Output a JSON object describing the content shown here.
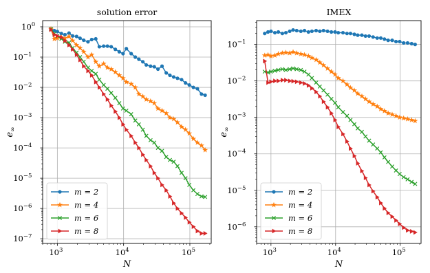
{
  "chart_data": [
    {
      "type": "line",
      "title": "solution error",
      "xlabel": "N",
      "ylabel": "e∞",
      "xscale": "log",
      "yscale": "log",
      "xlim": [
        600,
        210000
      ],
      "ylim": [
        7e-08,
        1.6
      ],
      "grid": true,
      "legend_position": "lower-left",
      "x_ticks": [
        1000,
        10000,
        100000
      ],
      "x_tick_labels": [
        "10³",
        "10⁴",
        "10⁵"
      ],
      "y_ticks": [
        1e-07,
        1e-06,
        1e-05,
        0.0001,
        0.001,
        0.01,
        0.1,
        1
      ],
      "y_tick_labels": [
        "10⁻⁷",
        "10⁻⁶",
        "10⁻⁵",
        "10⁻⁴",
        "10⁻³",
        "10⁻²",
        "10⁻¹",
        "10⁰"
      ],
      "series": [
        {
          "name": "m = 2",
          "color": "#1f77b4",
          "marker": "circle",
          "x": [
            800,
            900,
            1000,
            1150,
            1300,
            1500,
            1700,
            1950,
            2200,
            2500,
            2900,
            3300,
            3800,
            4300,
            5000,
            5700,
            6500,
            7500,
            8600,
            9800,
            11000,
            13000,
            15000,
            17000,
            19500,
            22000,
            25500,
            29000,
            33000,
            38000,
            44000,
            50000,
            57000,
            65000,
            75000,
            86000,
            98000,
            113000,
            130000,
            150000,
            170000
          ],
          "y": [
            0.85,
            0.75,
            0.7,
            0.6,
            0.55,
            0.62,
            0.5,
            0.48,
            0.42,
            0.36,
            0.32,
            0.38,
            0.4,
            0.22,
            0.23,
            0.23,
            0.22,
            0.18,
            0.15,
            0.13,
            0.19,
            0.13,
            0.1,
            0.085,
            0.07,
            0.055,
            0.05,
            0.048,
            0.04,
            0.05,
            0.03,
            0.025,
            0.022,
            0.02,
            0.018,
            0.014,
            0.012,
            0.01,
            0.009,
            0.006,
            0.0055
          ]
        },
        {
          "name": "m = 4",
          "color": "#ff7f0e",
          "marker": "star",
          "x": [
            800,
            900,
            1000,
            1150,
            1300,
            1500,
            1700,
            1950,
            2200,
            2500,
            2900,
            3300,
            3800,
            4300,
            5000,
            5700,
            6500,
            7500,
            8600,
            9800,
            11000,
            13000,
            15000,
            17000,
            19500,
            22000,
            25500,
            29000,
            33000,
            38000,
            44000,
            50000,
            57000,
            65000,
            75000,
            86000,
            98000,
            113000,
            130000,
            150000,
            170000
          ],
          "y": [
            0.85,
            0.4,
            0.42,
            0.45,
            0.42,
            0.48,
            0.35,
            0.25,
            0.2,
            0.15,
            0.1,
            0.12,
            0.07,
            0.05,
            0.06,
            0.045,
            0.04,
            0.032,
            0.025,
            0.02,
            0.015,
            0.013,
            0.01,
            0.006,
            0.005,
            0.004,
            0.0035,
            0.003,
            0.002,
            0.0017,
            0.0014,
            0.001,
            0.0009,
            0.0007,
            0.0005,
            0.0004,
            0.0003,
            0.0002,
            0.00015,
            0.00012,
            8.5e-05
          ]
        },
        {
          "name": "m = 6",
          "color": "#2ca02c",
          "marker": "x",
          "x": [
            800,
            900,
            1000,
            1150,
            1300,
            1500,
            1700,
            1950,
            2200,
            2500,
            2900,
            3300,
            3800,
            4300,
            5000,
            5700,
            6500,
            7500,
            8600,
            9800,
            11000,
            13000,
            15000,
            17000,
            19500,
            22000,
            25500,
            29000,
            33000,
            38000,
            44000,
            50000,
            57000,
            65000,
            75000,
            86000,
            98000,
            113000,
            130000,
            150000,
            170000
          ],
          "y": [
            0.85,
            0.6,
            0.5,
            0.4,
            0.32,
            0.3,
            0.2,
            0.14,
            0.1,
            0.07,
            0.045,
            0.035,
            0.028,
            0.018,
            0.012,
            0.009,
            0.0065,
            0.0045,
            0.003,
            0.002,
            0.0017,
            0.0013,
            0.0008,
            0.0006,
            0.0004,
            0.00025,
            0.00018,
            0.00015,
            0.0001,
            8e-05,
            5e-05,
            4e-05,
            3.5e-05,
            2.5e-05,
            1.5e-05,
            1e-05,
            6e-06,
            4e-06,
            3e-06,
            2.5e-06,
            2.4e-06
          ]
        },
        {
          "name": "m = 8",
          "color": "#d62728",
          "marker": "triangle-right",
          "x": [
            800,
            900,
            1000,
            1150,
            1300,
            1500,
            1700,
            1950,
            2200,
            2500,
            2900,
            3300,
            3800,
            4300,
            5000,
            5700,
            6500,
            7500,
            8600,
            9800,
            11000,
            13000,
            15000,
            17000,
            19500,
            22000,
            25500,
            29000,
            33000,
            38000,
            44000,
            50000,
            57000,
            65000,
            75000,
            86000,
            98000,
            113000,
            130000,
            150000,
            170000
          ],
          "y": [
            0.8,
            0.55,
            0.5,
            0.45,
            0.35,
            0.25,
            0.18,
            0.12,
            0.08,
            0.05,
            0.035,
            0.025,
            0.015,
            0.01,
            0.006,
            0.004,
            0.0025,
            0.0016,
            0.001,
            0.0006,
            0.0004,
            0.00025,
            0.00015,
            0.0001,
            6e-05,
            4e-05,
            2.5e-05,
            1.5e-05,
            1e-05,
            6e-06,
            4e-06,
            2.5e-06,
            1.5e-06,
            1e-06,
            7e-07,
            5e-07,
            3.5e-07,
            2.5e-07,
            1.8e-07,
            1.5e-07,
            1.5e-07
          ]
        }
      ]
    },
    {
      "type": "line",
      "title": "IMEX",
      "xlabel": "N",
      "ylabel": "e∞",
      "xscale": "log",
      "yscale": "log",
      "xlim": [
        600,
        210000
      ],
      "ylim": [
        3.5e-07,
        0.45
      ],
      "grid": true,
      "legend_position": "lower-left",
      "x_ticks": [
        1000,
        10000,
        100000
      ],
      "x_tick_labels": [
        "10³",
        "10⁴",
        "10⁵"
      ],
      "y_ticks": [
        1e-06,
        1e-05,
        0.0001,
        0.001,
        0.01,
        0.1
      ],
      "y_tick_labels": [
        "10⁻⁶",
        "10⁻⁵",
        "10⁻⁴",
        "10⁻³",
        "10⁻²",
        "10⁻¹"
      ],
      "series": [
        {
          "name": "m = 2",
          "color": "#1f77b4",
          "marker": "circle",
          "x": [
            800,
            900,
            1000,
            1150,
            1300,
            1500,
            1700,
            1950,
            2200,
            2500,
            2900,
            3300,
            3800,
            4300,
            5000,
            5700,
            6500,
            7500,
            8600,
            9800,
            11000,
            13000,
            15000,
            17000,
            19500,
            22000,
            25500,
            29000,
            33000,
            38000,
            44000,
            50000,
            57000,
            65000,
            75000,
            86000,
            98000,
            113000,
            130000,
            150000,
            170000
          ],
          "y": [
            0.2,
            0.22,
            0.23,
            0.21,
            0.22,
            0.2,
            0.21,
            0.23,
            0.25,
            0.24,
            0.23,
            0.24,
            0.22,
            0.23,
            0.24,
            0.23,
            0.24,
            0.23,
            0.22,
            0.22,
            0.21,
            0.21,
            0.2,
            0.2,
            0.19,
            0.18,
            0.18,
            0.17,
            0.17,
            0.16,
            0.15,
            0.15,
            0.14,
            0.13,
            0.13,
            0.12,
            0.12,
            0.11,
            0.11,
            0.105,
            0.1
          ]
        },
        {
          "name": "m = 4",
          "color": "#ff7f0e",
          "marker": "star",
          "x": [
            800,
            900,
            1000,
            1150,
            1300,
            1500,
            1700,
            1950,
            2200,
            2500,
            2900,
            3300,
            3800,
            4300,
            5000,
            5700,
            6500,
            7500,
            8600,
            9800,
            11000,
            13000,
            15000,
            17000,
            19500,
            22000,
            25500,
            29000,
            33000,
            38000,
            44000,
            50000,
            57000,
            65000,
            75000,
            86000,
            98000,
            113000,
            130000,
            150000,
            170000
          ],
          "y": [
            0.05,
            0.052,
            0.048,
            0.05,
            0.055,
            0.058,
            0.06,
            0.058,
            0.062,
            0.058,
            0.055,
            0.052,
            0.048,
            0.043,
            0.038,
            0.032,
            0.027,
            0.022,
            0.018,
            0.015,
            0.012,
            0.01,
            0.008,
            0.0065,
            0.0055,
            0.0045,
            0.0038,
            0.0032,
            0.0027,
            0.0023,
            0.002,
            0.0017,
            0.0015,
            0.0013,
            0.0012,
            0.0011,
            0.001,
            0.00095,
            0.0009,
            0.00085,
            0.0008
          ]
        },
        {
          "name": "m = 6",
          "color": "#2ca02c",
          "marker": "x",
          "x": [
            800,
            900,
            1000,
            1150,
            1300,
            1500,
            1700,
            1950,
            2200,
            2500,
            2900,
            3300,
            3800,
            4300,
            5000,
            5700,
            6500,
            7500,
            8600,
            9800,
            11000,
            13000,
            15000,
            17000,
            19500,
            22000,
            25500,
            29000,
            33000,
            38000,
            44000,
            50000,
            57000,
            65000,
            75000,
            86000,
            98000,
            113000,
            130000,
            150000,
            170000
          ],
          "y": [
            0.018,
            0.017,
            0.018,
            0.019,
            0.02,
            0.021,
            0.02,
            0.021,
            0.022,
            0.021,
            0.02,
            0.018,
            0.015,
            0.012,
            0.009,
            0.007,
            0.0055,
            0.0042,
            0.0032,
            0.0025,
            0.0019,
            0.0014,
            0.0011,
            0.00085,
            0.00065,
            0.0005,
            0.0004,
            0.0003,
            0.00023,
            0.00018,
            0.00014,
            0.00011,
            8e-05,
            6e-05,
            4.5e-05,
            3.5e-05,
            2.8e-05,
            2.3e-05,
            2e-05,
            1.7e-05,
            1.5e-05
          ]
        },
        {
          "name": "m = 8",
          "color": "#d62728",
          "marker": "triangle-right",
          "x": [
            800,
            900,
            1000,
            1150,
            1300,
            1500,
            1700,
            1950,
            2200,
            2500,
            2900,
            3300,
            3800,
            4300,
            5000,
            5700,
            6500,
            7500,
            8600,
            9800,
            11000,
            13000,
            15000,
            17000,
            19500,
            22000,
            25500,
            29000,
            33000,
            38000,
            44000,
            50000,
            57000,
            65000,
            75000,
            86000,
            98000,
            113000,
            130000,
            150000,
            170000
          ],
          "y": [
            0.035,
            0.009,
            0.0095,
            0.01,
            0.01,
            0.0105,
            0.0105,
            0.01,
            0.0098,
            0.0095,
            0.009,
            0.0085,
            0.0075,
            0.0063,
            0.005,
            0.0038,
            0.0027,
            0.0019,
            0.0013,
            0.00085,
            0.00055,
            0.00035,
            0.00022,
            0.00014,
            8.8e-05,
            5.5e-05,
            3.4e-05,
            2.2e-05,
            1.4e-05,
            9.5e-06,
            6.5e-06,
            4.5e-06,
            3.2e-06,
            2.4e-06,
            1.9e-06,
            1.5e-06,
            1.2e-06,
            9.5e-07,
            8e-07,
            7.5e-07,
            7e-07
          ]
        }
      ]
    }
  ]
}
